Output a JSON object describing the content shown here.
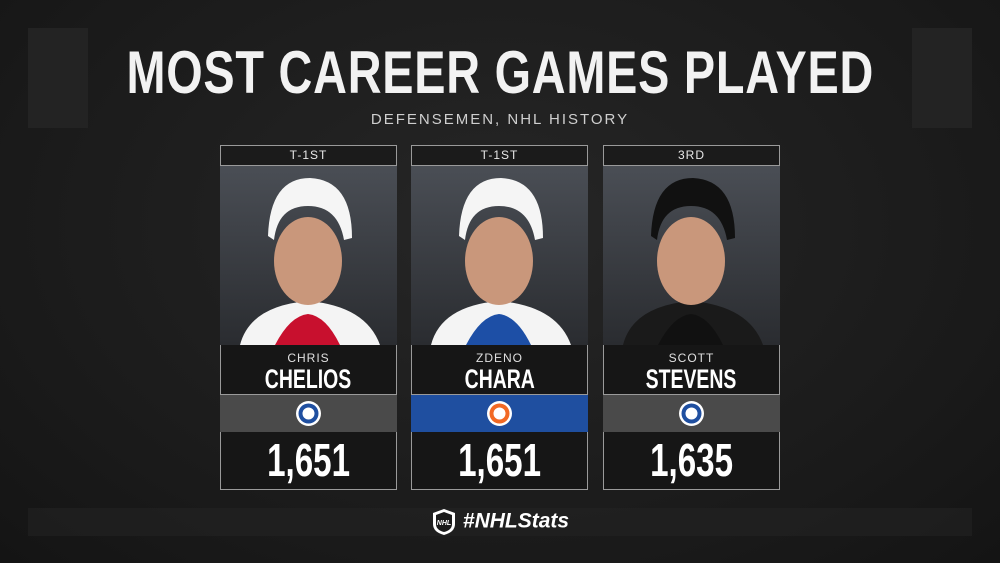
{
  "header": {
    "title": "MOST CAREER GAMES PLAYED",
    "subtitle": "DEFENSEMEN, NHL HISTORY"
  },
  "cards": [
    {
      "rank": "T-1ST",
      "first_name": "CHRIS",
      "last_name": "CHELIOS",
      "games": "1,651",
      "band_color": "#4a4a4a",
      "jersey_color": "#c8102e"
    },
    {
      "rank": "T-1ST",
      "first_name": "ZDENO",
      "last_name": "CHARA",
      "games": "1,651",
      "band_color": "#1f4fa0",
      "jersey_color": "#1d4fa6"
    },
    {
      "rank": "3RD",
      "first_name": "SCOTT",
      "last_name": "STEVENS",
      "games": "1,635",
      "band_color": "#4a4a4a",
      "jersey_color": "#111111"
    }
  ],
  "footer": {
    "hashtag": "#NHLStats"
  }
}
